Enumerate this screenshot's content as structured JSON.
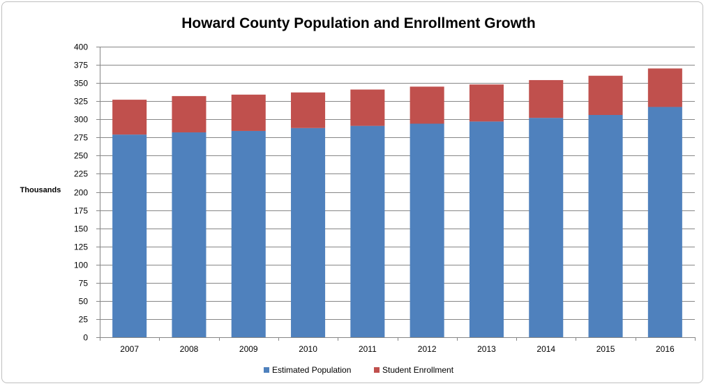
{
  "chart_data": {
    "type": "bar",
    "stacked": true,
    "title": "Howard County Population and Enrollment Growth",
    "xlabel": "",
    "ylabel": "Thousands",
    "categories": [
      "2007",
      "2008",
      "2009",
      "2010",
      "2011",
      "2012",
      "2013",
      "2014",
      "2015",
      "2016"
    ],
    "series": [
      {
        "name": "Estimated Population",
        "color": "#4f81bd",
        "values": [
          279,
          282,
          284,
          288,
          291,
          294,
          297,
          302,
          306,
          317
        ]
      },
      {
        "name": "Student Enrollment",
        "color": "#c0504d",
        "values": [
          48,
          50,
          50,
          49,
          50,
          51,
          51,
          52,
          54,
          53
        ]
      }
    ],
    "ylim": [
      0,
      400
    ],
    "yticks": [
      0,
      25,
      50,
      75,
      100,
      125,
      150,
      175,
      200,
      225,
      250,
      275,
      300,
      325,
      350,
      375,
      400
    ],
    "grid": true,
    "legend_position": "bottom"
  }
}
